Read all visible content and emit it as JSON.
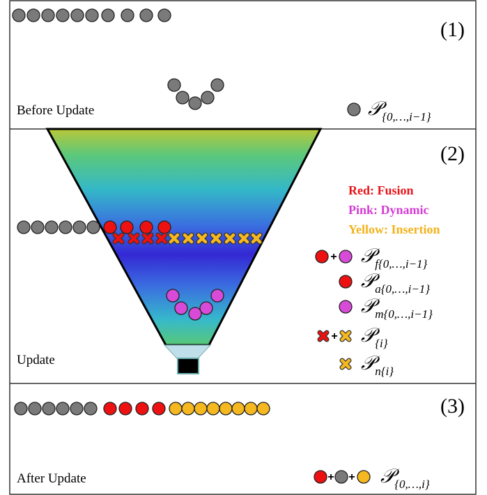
{
  "panels": [
    {
      "number": "(1)",
      "caption": "Before Update"
    },
    {
      "number": "(2)",
      "caption": "Update"
    },
    {
      "number": "(3)",
      "caption": "After Update"
    }
  ],
  "color_key": {
    "red": "Red: Fusion",
    "pink": "Pink: Dynamic",
    "yellow": "Yellow: Insertion"
  },
  "legend": [
    {
      "main": "𝒫",
      "sub": "{0,…,i−1}"
    },
    {
      "main": "𝒫",
      "sub": "f{0,…,i−1}"
    },
    {
      "main": "𝒫",
      "sub": "a{0,…,i−1}"
    },
    {
      "main": "𝒫",
      "sub": "m{0,…,i−1}"
    },
    {
      "main": "𝒫",
      "sub": "{i}"
    },
    {
      "main": "𝒫",
      "sub": "n{i}"
    },
    {
      "main": "𝒫",
      "sub": "{0,…,i}"
    }
  ],
  "plus": "+"
}
